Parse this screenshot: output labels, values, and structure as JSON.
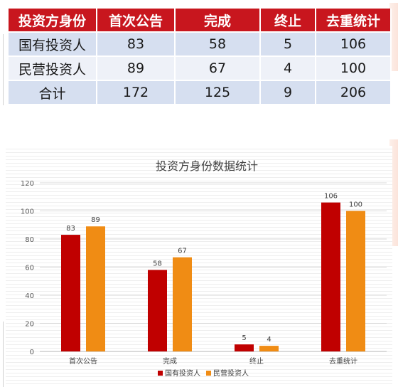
{
  "table": {
    "headers": [
      "投资方身份",
      "首次公告",
      "完成",
      "终止",
      "去重统计"
    ],
    "rows": [
      [
        "国有投资人",
        "83",
        "58",
        "5",
        "106"
      ],
      [
        "民营投资人",
        "89",
        "67",
        "4",
        "100"
      ],
      [
        "合计",
        "172",
        "125",
        "9",
        "206"
      ]
    ],
    "header_color": "#c8161e"
  },
  "chart_data": {
    "type": "bar",
    "title": "投资方身份数据统计",
    "categories": [
      "首次公告",
      "完成",
      "终止",
      "去重统计"
    ],
    "series": [
      {
        "name": "国有投资人",
        "values": [
          83,
          58,
          5,
          106
        ],
        "color": "#c00000"
      },
      {
        "name": "民营投资人",
        "values": [
          89,
          67,
          4,
          100
        ],
        "color": "#f08c14"
      }
    ],
    "ylim": [
      0,
      120
    ],
    "yticks": [
      0,
      20,
      40,
      60,
      80,
      100,
      120
    ],
    "legend": "bottom",
    "grid": true
  }
}
